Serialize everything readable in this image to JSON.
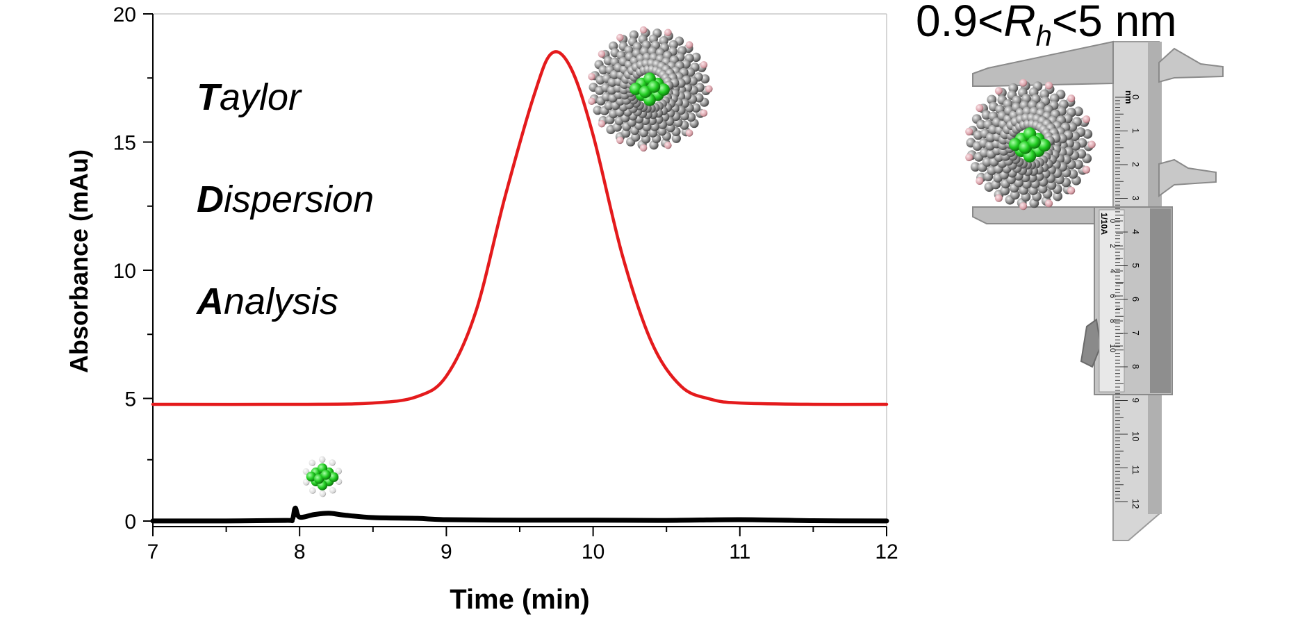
{
  "chart_data": {
    "type": "line",
    "xlabel": "Time (min)",
    "ylabel": "Absorbance (mAu)",
    "xlim": [
      7,
      12
    ],
    "ylim": [
      0,
      20
    ],
    "x_ticks": [
      7,
      8,
      9,
      10,
      11,
      12
    ],
    "y_ticks": [
      0,
      5,
      10,
      15,
      20
    ],
    "grid": false,
    "series": [
      {
        "color": "#e41a1c",
        "x": [
          7.0,
          8.0,
          8.5,
          8.8,
          9.0,
          9.2,
          9.4,
          9.6,
          9.72,
          9.85,
          10.0,
          10.2,
          10.4,
          10.6,
          10.8,
          11.0,
          11.5,
          12.0
        ],
        "y": [
          4.5,
          4.5,
          4.55,
          4.8,
          5.6,
          8.1,
          12.6,
          16.6,
          18.2,
          17.6,
          15.0,
          10.3,
          6.9,
          5.2,
          4.7,
          4.55,
          4.5,
          4.5
        ]
      },
      {
        "color": "#000000",
        "x": [
          7.0,
          7.5,
          7.9,
          7.95,
          7.97,
          8.0,
          8.1,
          8.2,
          8.3,
          8.5,
          8.8,
          9.0,
          9.5,
          10.0,
          10.5,
          11.0,
          11.5,
          12.0
        ],
        "y": [
          -0.05,
          -0.05,
          -0.03,
          0.0,
          0.45,
          0.1,
          0.2,
          0.25,
          0.18,
          0.08,
          0.05,
          0.0,
          -0.02,
          -0.02,
          -0.03,
          0.0,
          -0.04,
          -0.05
        ]
      }
    ]
  },
  "annotations": {
    "taylor": {
      "initial": "T",
      "rest": "aylor"
    },
    "dispersion": {
      "initial": "D",
      "rest": "ispersion"
    },
    "analysis": {
      "initial": "A",
      "rest": "nalysis"
    },
    "range": {
      "prefix": "0.9<",
      "symbol": "R",
      "subscript": "h",
      "suffix": "<5 nm"
    }
  },
  "caliper": {
    "unit": "nm",
    "main_scale": [
      "0",
      "1",
      "2",
      "3",
      "4",
      "5",
      "6",
      "7",
      "8",
      "9",
      "10",
      "11",
      "12"
    ],
    "vernier_label": "1/10A",
    "vernier_scale": [
      "0",
      "2",
      "4",
      "6",
      "8",
      "10"
    ]
  },
  "colors": {
    "axis": "#000000",
    "red_trace": "#e41a1c",
    "black_trace": "#000000",
    "molecule_core": "#22cc22",
    "molecule_shell": "#8c8c8c",
    "molecule_head": "#d9a0a8",
    "caliper_light": "#d8d8d8",
    "caliper_dark": "#9a9a9a"
  },
  "icons": {
    "micelle": "micelle-molecule-icon",
    "core": "pyrene-molecule-icon",
    "caliper": "vernier-caliper-icon"
  }
}
